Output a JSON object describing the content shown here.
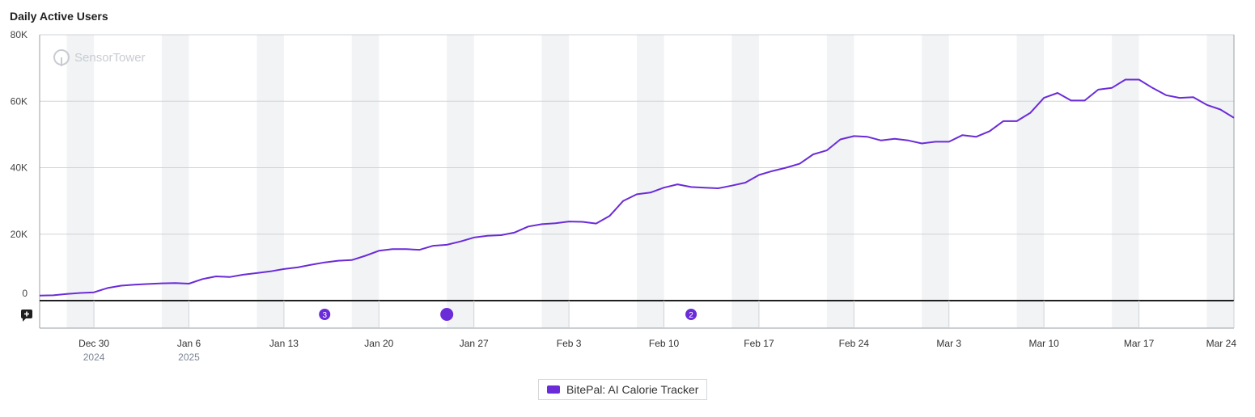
{
  "chart_data": {
    "type": "line",
    "title": "Daily Active Users",
    "watermark": "SensorTower",
    "x_start": "2024-12-26",
    "x_end": "2025-03-24",
    "x_ticks": [
      {
        "label": "Dec 30",
        "year": "2024",
        "date": "2024-12-30"
      },
      {
        "label": "Jan 6",
        "year": "2025",
        "date": "2025-01-06"
      },
      {
        "label": "Jan 13",
        "date": "2025-01-13"
      },
      {
        "label": "Jan 20",
        "date": "2025-01-20"
      },
      {
        "label": "Jan 27",
        "date": "2025-01-27"
      },
      {
        "label": "Feb 3",
        "date": "2025-02-03"
      },
      {
        "label": "Feb 10",
        "date": "2025-02-10"
      },
      {
        "label": "Feb 17",
        "date": "2025-02-17"
      },
      {
        "label": "Feb 24",
        "date": "2025-02-24"
      },
      {
        "label": "Mar 3",
        "date": "2025-03-03"
      },
      {
        "label": "Mar 10",
        "date": "2025-03-10"
      },
      {
        "label": "Mar 17",
        "date": "2025-03-17"
      },
      {
        "label": "Mar 24",
        "date": "2025-03-24"
      }
    ],
    "y_ticks": [
      {
        "label": "0",
        "value": 0
      },
      {
        "label": "20K",
        "value": 20000
      },
      {
        "label": "40K",
        "value": 40000
      },
      {
        "label": "60K",
        "value": 60000
      },
      {
        "label": "80K",
        "value": 80000
      }
    ],
    "ylim": [
      0,
      80000
    ],
    "weekend_shading": true,
    "grid": true,
    "legend_position": "bottom-center",
    "series": [
      {
        "name": "BitePal: AI Calorie Tracker",
        "color": "#6a2bd8",
        "x": [
          "2024-12-26",
          "2024-12-27",
          "2024-12-28",
          "2024-12-29",
          "2024-12-30",
          "2024-12-31",
          "2025-01-01",
          "2025-01-02",
          "2025-01-03",
          "2025-01-04",
          "2025-01-05",
          "2025-01-06",
          "2025-01-07",
          "2025-01-08",
          "2025-01-09",
          "2025-01-10",
          "2025-01-11",
          "2025-01-12",
          "2025-01-13",
          "2025-01-14",
          "2025-01-15",
          "2025-01-16",
          "2025-01-17",
          "2025-01-18",
          "2025-01-19",
          "2025-01-20",
          "2025-01-21",
          "2025-01-22",
          "2025-01-23",
          "2025-01-24",
          "2025-01-25",
          "2025-01-26",
          "2025-01-27",
          "2025-01-28",
          "2025-01-29",
          "2025-01-30",
          "2025-01-31",
          "2025-02-01",
          "2025-02-02",
          "2025-02-03",
          "2025-02-04",
          "2025-02-05",
          "2025-02-06",
          "2025-02-07",
          "2025-02-08",
          "2025-02-09",
          "2025-02-10",
          "2025-02-11",
          "2025-02-12",
          "2025-02-13",
          "2025-02-14",
          "2025-02-15",
          "2025-02-16",
          "2025-02-17",
          "2025-02-18",
          "2025-02-19",
          "2025-02-20",
          "2025-02-21",
          "2025-02-22",
          "2025-02-23",
          "2025-02-24",
          "2025-02-25",
          "2025-02-26",
          "2025-02-27",
          "2025-02-28",
          "2025-03-01",
          "2025-03-02",
          "2025-03-03",
          "2025-03-04",
          "2025-03-05",
          "2025-03-06",
          "2025-03-07",
          "2025-03-08",
          "2025-03-09",
          "2025-03-10",
          "2025-03-11",
          "2025-03-12",
          "2025-03-13",
          "2025-03-14",
          "2025-03-15",
          "2025-03-16",
          "2025-03-17",
          "2025-03-18",
          "2025-03-19",
          "2025-03-20",
          "2025-03-21",
          "2025-03-22",
          "2025-03-23",
          "2025-03-24"
        ],
        "values": [
          1500,
          1600,
          2000,
          2300,
          2500,
          3800,
          4500,
          4800,
          5000,
          5200,
          5300,
          5100,
          6500,
          7300,
          7100,
          7800,
          8300,
          8800,
          9500,
          10000,
          10800,
          11500,
          12000,
          12200,
          13500,
          15000,
          15500,
          15500,
          15300,
          16500,
          16800,
          17800,
          19000,
          19500,
          19700,
          20500,
          22300,
          23000,
          23300,
          23800,
          23700,
          23200,
          25500,
          30000,
          32000,
          32500,
          34000,
          35000,
          34200,
          34000,
          33800,
          34600,
          35500,
          37800,
          39000,
          40000,
          41200,
          44000,
          45200,
          48500,
          49500,
          49300,
          48200,
          48700,
          48200,
          47300,
          47800,
          47800,
          49800,
          49300,
          51000,
          54000,
          54000,
          56500,
          61000,
          62500,
          60200,
          60200,
          63500,
          64000,
          66500,
          66500,
          64000,
          61800,
          61000,
          61200,
          58900,
          57500,
          55000
        ]
      }
    ]
  },
  "annotations": [
    {
      "date": "2025-01-16",
      "label": "3"
    },
    {
      "date": "2025-01-25",
      "label": ""
    },
    {
      "date": "2025-02-12",
      "label": "2"
    }
  ],
  "annotation_icon": "add-comment-icon"
}
